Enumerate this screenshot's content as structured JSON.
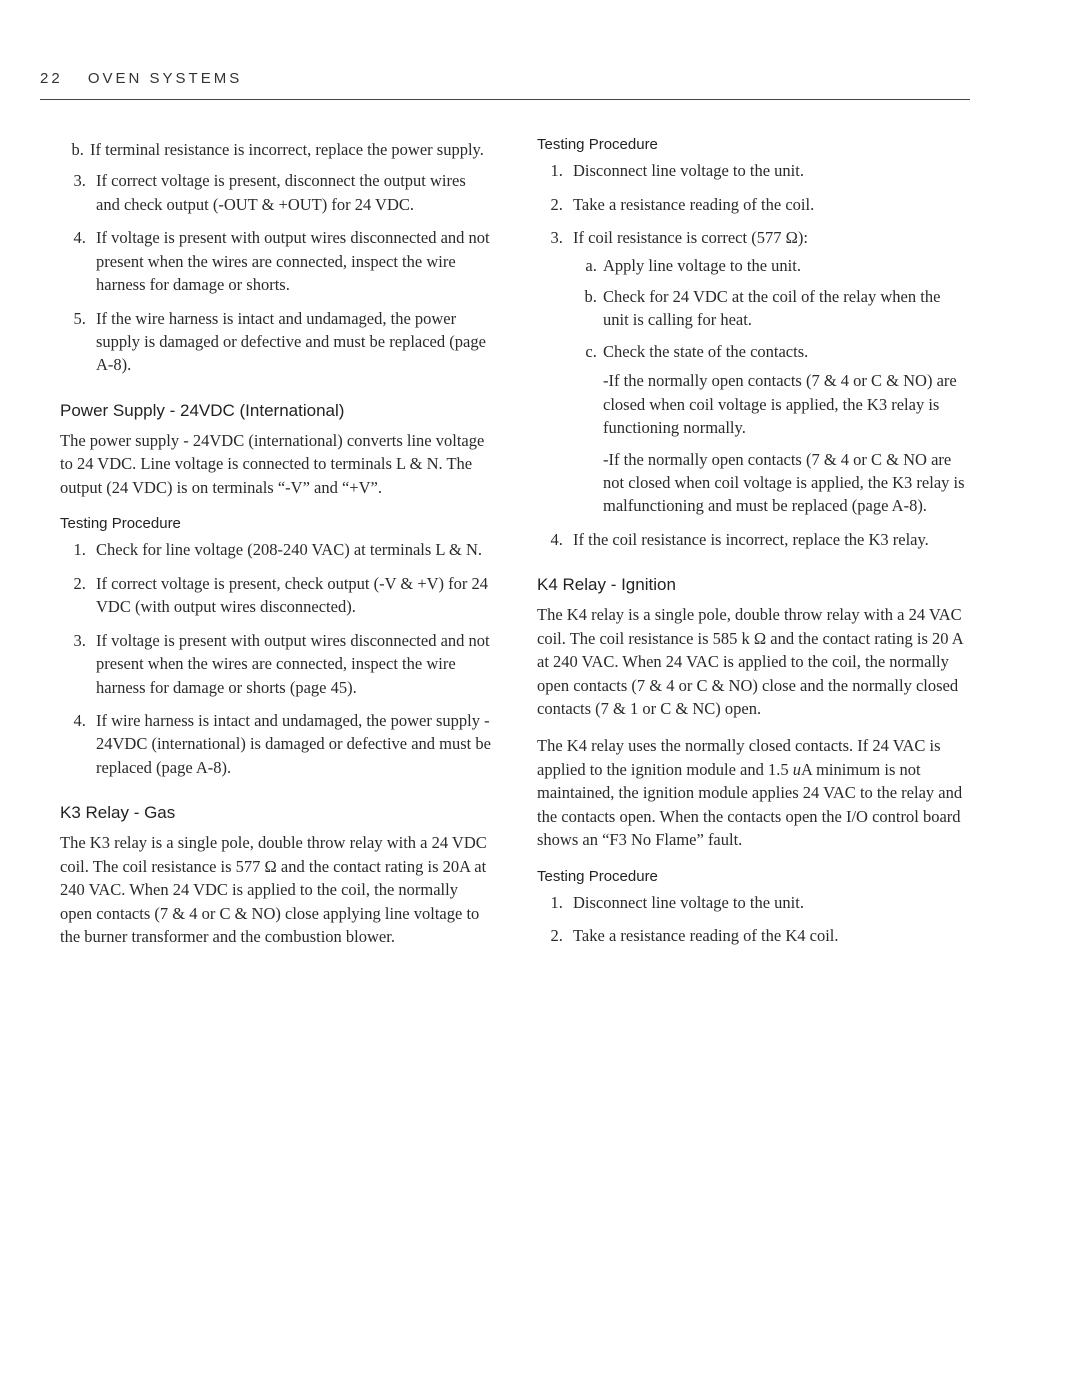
{
  "header": {
    "page_number": "22",
    "title": "OVEN SYSTEMS"
  },
  "left": {
    "item_b": "If terminal resistance is incorrect, replace the power supply.",
    "list1": {
      "i3": "If correct voltage is present, disconnect the output wires and check output (-OUT & +OUT) for 24 VDC.",
      "i4": "If voltage is present with output wires disconnected and not present when the wires are connected, inspect the wire harness for damage or shorts.",
      "i5": "If the wire harness is intact and undamaged, the power supply is damaged or defective and must be replaced (page A-8)."
    },
    "ps_heading": "Power Supply - 24VDC (International)",
    "ps_para": "The power supply - 24VDC (international) converts line voltage to 24 VDC. Line voltage is connected to terminals L & N.  The output (24 VDC) is on terminals “-V” and “+V”.",
    "tp_heading": "Testing Procedure",
    "list2": {
      "i1": "Check for line voltage (208-240 VAC) at terminals L & N.",
      "i2": "If correct voltage is present, check output (-V & +V) for 24 VDC (with output wires disconnected).",
      "i3": "If voltage is present with output wires disconnected and not present when the wires are connected, inspect the wire harness for damage or shorts (page 45).",
      "i4": "If wire harness is intact and undamaged, the power supply - 24VDC (international) is damaged or defective and must be replaced (page A-8)."
    },
    "k3_heading": "K3 Relay - Gas",
    "k3_para": "The K3 relay is a single pole, double throw relay with a 24 VDC coil. The coil resistance is 577 Ω and the contact rating is 20A at 240 VAC. When 24 VDC is applied to the coil, the normally open contacts (7 & 4 or C & NO) close applying line voltage to the burner transformer and the combustion blower."
  },
  "right": {
    "tp_heading": "Testing Procedure",
    "list1": {
      "i1": "Disconnect line voltage to the unit.",
      "i2": "Take a resistance reading of the coil.",
      "i3": "If coil resistance is correct (577 Ω):",
      "i3a": "Apply line voltage to the unit.",
      "i3b": "Check for 24 VDC at the coil of the relay when the unit is calling for heat.",
      "i3c": "Check the state of the contacts.",
      "i3c_sub1": "-If the normally open contacts (7 & 4 or C & NO) are closed when coil voltage is applied, the K3 relay is functioning normally.",
      "i3c_sub2": "-If the normally open contacts (7 & 4 or C & NO are not closed when coil voltage is applied, the K3 relay is malfunctioning and must be replaced (page A-8).",
      "i4": "If the coil resistance is incorrect, replace the K3 relay."
    },
    "k4_heading": "K4 Relay - Ignition",
    "k4_para1_a": "The K4 relay is a single pole, double throw relay with a 24 VAC coil. The coil resistance is 585 k Ω and the contact rating is 20 A at 240 VAC. When 24 VAC is applied to the coil, the normally open contacts (7 & 4 or C & NO) close and the normally closed contacts (7 & 1 or C & NC) open.",
    "k4_para2_a": "The K4 relay uses the normally closed contacts. If 24 VAC is applied to the ignition module and 1.5 ",
    "k4_para2_u": "u",
    "k4_para2_b": "A minimum is not maintained, the ignition module applies 24 VAC to the relay and the contacts open. When the contacts open the I/O control board shows an “F3 No Flame” fault.",
    "tp2_heading": "Testing Procedure",
    "list2": {
      "i1": "Disconnect line voltage to the unit.",
      "i2": "Take a resistance reading of the K4 coil."
    }
  }
}
